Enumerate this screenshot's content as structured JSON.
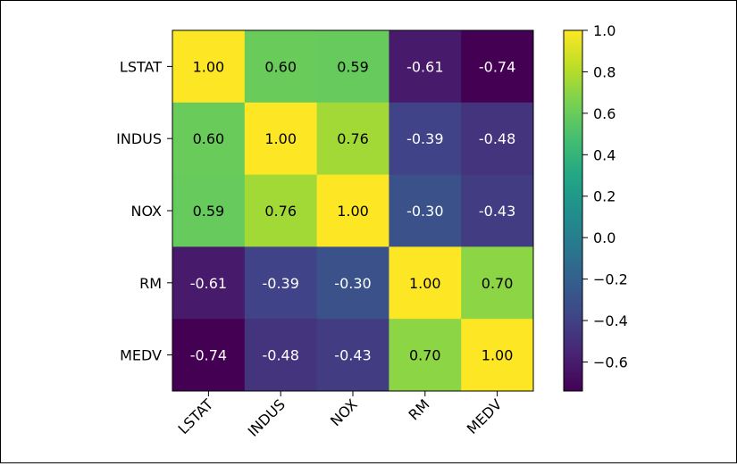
{
  "chart_data": {
    "type": "heatmap",
    "title": "",
    "xlabel": "",
    "ylabel": "",
    "row_labels": [
      "LSTAT",
      "INDUS",
      "NOX",
      "RM",
      "MEDV"
    ],
    "col_labels": [
      "LSTAT",
      "INDUS",
      "NOX",
      "RM",
      "MEDV"
    ],
    "values": [
      [
        1.0,
        0.6,
        0.59,
        -0.61,
        -0.74
      ],
      [
        0.6,
        1.0,
        0.76,
        -0.39,
        -0.48
      ],
      [
        0.59,
        0.76,
        1.0,
        -0.3,
        -0.43
      ],
      [
        -0.61,
        -0.39,
        -0.3,
        1.0,
        0.7
      ],
      [
        -0.74,
        -0.48,
        -0.43,
        0.7,
        1.0
      ]
    ],
    "value_format": "2 decimals",
    "colormap": "viridis",
    "colorbar": {
      "range": [
        -0.74,
        1.0
      ],
      "ticks": [
        1.0,
        0.8,
        0.6,
        0.4,
        0.2,
        0.0,
        -0.2,
        -0.4,
        -0.6
      ],
      "tick_labels": [
        "1.0",
        "0.8",
        "0.6",
        "0.4",
        "0.2",
        "0.0",
        "−0.2",
        "−0.4",
        "−0.6"
      ]
    },
    "text_colors": {
      "dark_cells": "#ffffff",
      "light_cells": "#000000"
    },
    "grid": false
  }
}
